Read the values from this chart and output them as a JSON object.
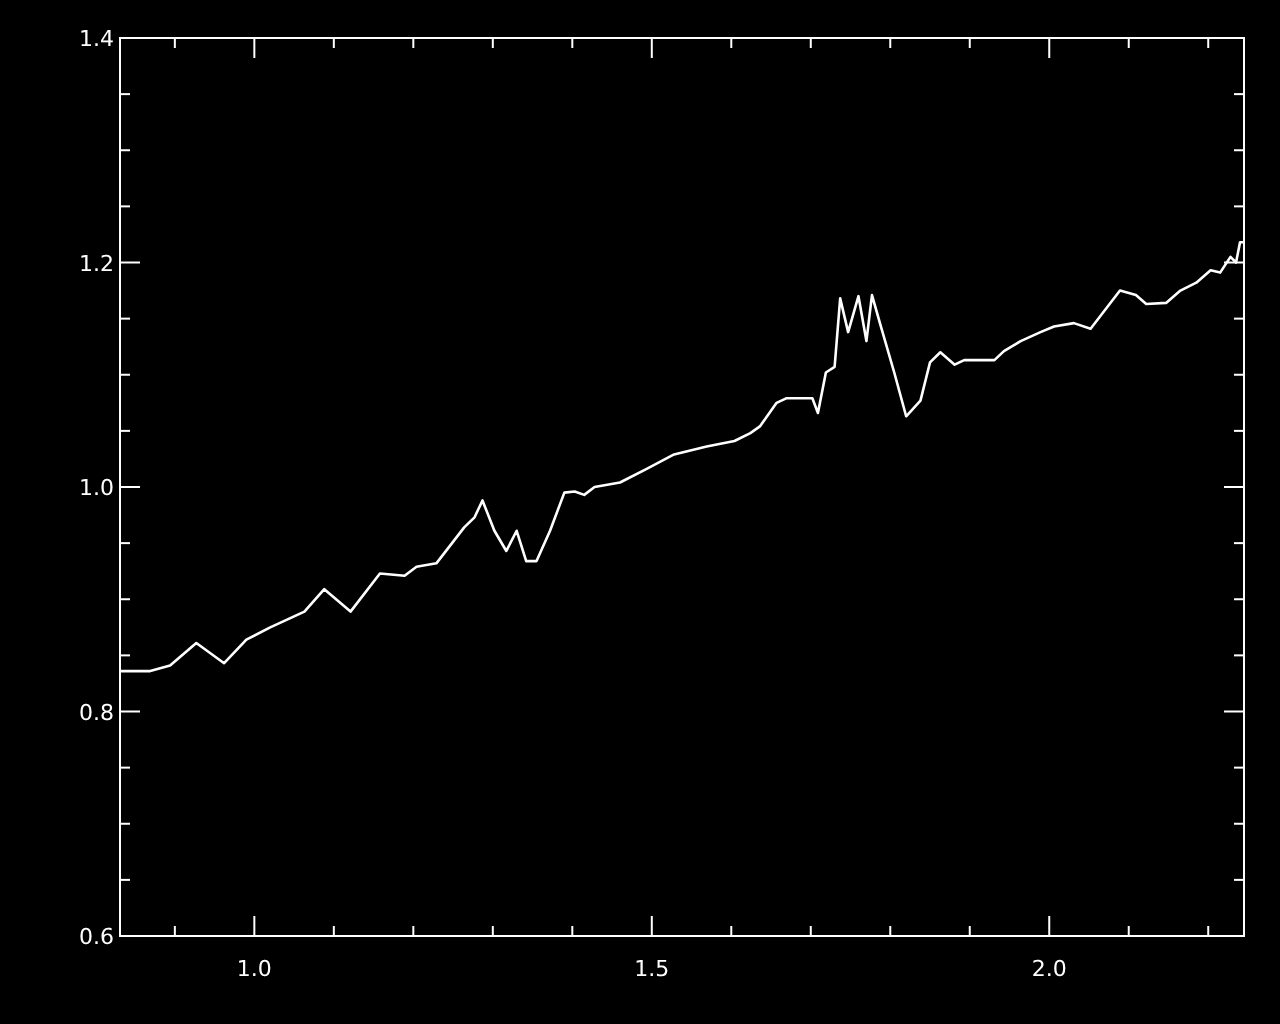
{
  "chart_data": {
    "type": "line",
    "xlim": [
      0.831,
      2.245
    ],
    "ylim": [
      0.6,
      1.4
    ],
    "xticks": [
      {
        "value": 0.9,
        "label": null
      },
      {
        "value": 1.0,
        "label": "1.0"
      },
      {
        "value": 1.1,
        "label": null
      },
      {
        "value": 1.2,
        "label": null
      },
      {
        "value": 1.3,
        "label": null
      },
      {
        "value": 1.4,
        "label": null
      },
      {
        "value": 1.5,
        "label": "1.5"
      },
      {
        "value": 1.6,
        "label": null
      },
      {
        "value": 1.7,
        "label": null
      },
      {
        "value": 1.8,
        "label": null
      },
      {
        "value": 1.9,
        "label": null
      },
      {
        "value": 2.0,
        "label": "2.0"
      },
      {
        "value": 2.1,
        "label": null
      },
      {
        "value": 2.2,
        "label": null
      }
    ],
    "yticks": [
      {
        "value": 0.6,
        "label": "0.6"
      },
      {
        "value": 0.65,
        "label": null
      },
      {
        "value": 0.7,
        "label": null
      },
      {
        "value": 0.75,
        "label": null
      },
      {
        "value": 0.8,
        "label": "0.8"
      },
      {
        "value": 0.85,
        "label": null
      },
      {
        "value": 0.9,
        "label": null
      },
      {
        "value": 0.95,
        "label": null
      },
      {
        "value": 1.0,
        "label": "1.0"
      },
      {
        "value": 1.05,
        "label": null
      },
      {
        "value": 1.1,
        "label": null
      },
      {
        "value": 1.15,
        "label": null
      },
      {
        "value": 1.2,
        "label": "1.2"
      },
      {
        "value": 1.25,
        "label": null
      },
      {
        "value": 1.3,
        "label": null
      },
      {
        "value": 1.35,
        "label": null
      },
      {
        "value": 1.4,
        "label": "1.4"
      }
    ],
    "grid": false,
    "marker": "none",
    "line_style": "solid",
    "series": [
      {
        "color": "#ffffff",
        "x": [
          0.831,
          0.869,
          0.894,
          0.927,
          0.962,
          0.99,
          1.02,
          1.063,
          1.088,
          1.121,
          1.158,
          1.189,
          1.204,
          1.229,
          1.264,
          1.277,
          1.287,
          1.302,
          1.317,
          1.33,
          1.342,
          1.355,
          1.372,
          1.39,
          1.403,
          1.415,
          1.428,
          1.46,
          1.493,
          1.528,
          1.569,
          1.604,
          1.624,
          1.636,
          1.657,
          1.669,
          1.702,
          1.709,
          1.719,
          1.73,
          1.737,
          1.747,
          1.76,
          1.77,
          1.777,
          1.787,
          1.805,
          1.82,
          1.838,
          1.85,
          1.863,
          1.881,
          1.893,
          1.931,
          1.943,
          1.964,
          1.989,
          2.006,
          2.031,
          2.052,
          2.089,
          2.109,
          2.122,
          2.147,
          2.165,
          2.185,
          2.203,
          2.215,
          2.228,
          2.235,
          2.24,
          2.245
        ],
        "values": [
          0.836,
          0.836,
          0.841,
          0.861,
          0.843,
          0.864,
          0.875,
          0.889,
          0.909,
          0.889,
          0.923,
          0.921,
          0.929,
          0.932,
          0.964,
          0.973,
          0.988,
          0.961,
          0.943,
          0.961,
          0.934,
          0.934,
          0.961,
          0.995,
          0.996,
          0.993,
          1.0,
          1.004,
          1.016,
          1.029,
          1.036,
          1.041,
          1.048,
          1.054,
          1.075,
          1.079,
          1.079,
          1.066,
          1.102,
          1.107,
          1.168,
          1.138,
          1.17,
          1.13,
          1.171,
          1.146,
          1.102,
          1.063,
          1.077,
          1.111,
          1.12,
          1.109,
          1.113,
          1.113,
          1.121,
          1.13,
          1.138,
          1.143,
          1.146,
          1.141,
          1.175,
          1.171,
          1.163,
          1.164,
          1.175,
          1.182,
          1.193,
          1.191,
          1.205,
          1.2,
          1.218,
          1.218
        ]
      }
    ]
  }
}
